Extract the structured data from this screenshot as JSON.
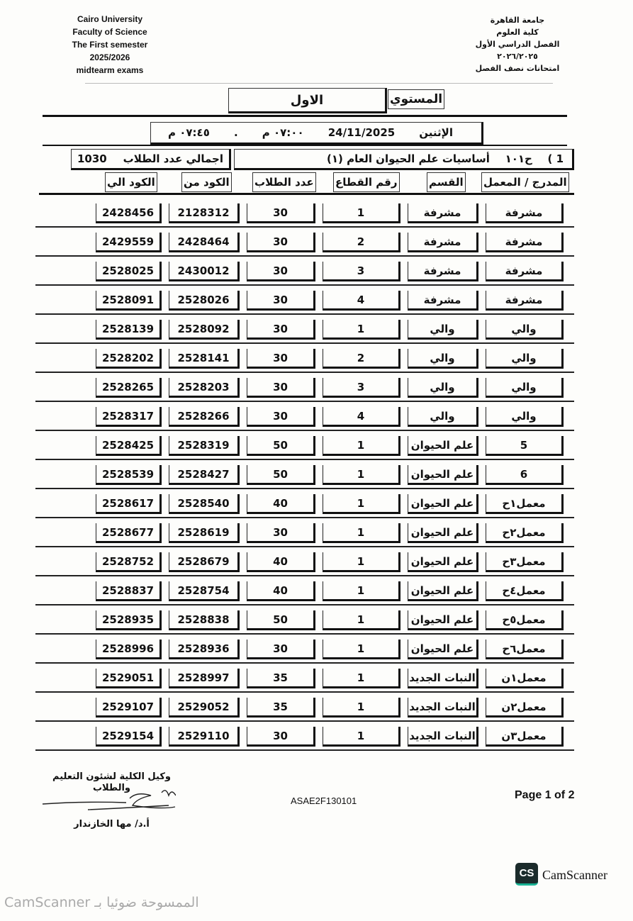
{
  "header_en": {
    "university": "Cairo University",
    "faculty": "Faculty of Science",
    "semester": "The First semester",
    "year": "2025/2026",
    "exam": "midtearm exams"
  },
  "header_ar": {
    "university": "جامعة القاهرة",
    "faculty": "كلية العلوم",
    "semester": "الفصل الدراسي الأول",
    "year": "٢٠٢٦/٢٠٢٥",
    "exam": "امتحانات نصف الفصل"
  },
  "level": {
    "label": "المستوي",
    "value": "الاول"
  },
  "schedule": {
    "day": "الإثنين",
    "date": "24/11/2025",
    "start": "٠٧:٠٠ م",
    "separator": ".",
    "end": "٠٧:٤٥ م"
  },
  "course": {
    "index": "1 )",
    "code": "ح١٠١",
    "name": "أساسيات علم الحيوان العام (١)",
    "total_label": "اجمالي عدد الطلاب",
    "total": "1030"
  },
  "columns": {
    "hall": "المدرج / المعمل",
    "dept": "القسم",
    "section": "رقم القطاع",
    "count": "عدد الطلاب",
    "from": "الكود من",
    "to": "الكود الي"
  },
  "rows": [
    {
      "hall": "مشرفة",
      "dept": "مشرفة",
      "section": "1",
      "count": "30",
      "from": "2128312",
      "to": "2428456"
    },
    {
      "hall": "مشرفة",
      "dept": "مشرفة",
      "section": "2",
      "count": "30",
      "from": "2428464",
      "to": "2429559"
    },
    {
      "hall": "مشرفة",
      "dept": "مشرفة",
      "section": "3",
      "count": "30",
      "from": "2430012",
      "to": "2528025"
    },
    {
      "hall": "مشرفة",
      "dept": "مشرفة",
      "section": "4",
      "count": "30",
      "from": "2528026",
      "to": "2528091"
    },
    {
      "hall": "والي",
      "dept": "والي",
      "section": "1",
      "count": "30",
      "from": "2528092",
      "to": "2528139"
    },
    {
      "hall": "والي",
      "dept": "والي",
      "section": "2",
      "count": "30",
      "from": "2528141",
      "to": "2528202"
    },
    {
      "hall": "والي",
      "dept": "والي",
      "section": "3",
      "count": "30",
      "from": "2528203",
      "to": "2528265"
    },
    {
      "hall": "والي",
      "dept": "والي",
      "section": "4",
      "count": "30",
      "from": "2528266",
      "to": "2528317"
    },
    {
      "hall": "5",
      "dept": "علم الحيوان",
      "section": "1",
      "count": "50",
      "from": "2528319",
      "to": "2528425"
    },
    {
      "hall": "6",
      "dept": "علم الحيوان",
      "section": "1",
      "count": "50",
      "from": "2528427",
      "to": "2528539"
    },
    {
      "hall": "معمل١ح",
      "dept": "علم الحيوان",
      "section": "1",
      "count": "40",
      "from": "2528540",
      "to": "2528617"
    },
    {
      "hall": "معمل٢ح",
      "dept": "علم الحيوان",
      "section": "1",
      "count": "30",
      "from": "2528619",
      "to": "2528677"
    },
    {
      "hall": "معمل٣ح",
      "dept": "علم الحيوان",
      "section": "1",
      "count": "40",
      "from": "2528679",
      "to": "2528752"
    },
    {
      "hall": "معمل٤ح",
      "dept": "علم الحيوان",
      "section": "1",
      "count": "40",
      "from": "2528754",
      "to": "2528837"
    },
    {
      "hall": "معمل٥ح",
      "dept": "علم الحيوان",
      "section": "1",
      "count": "50",
      "from": "2528838",
      "to": "2528935"
    },
    {
      "hall": "معمل٦ح",
      "dept": "علم الحيوان",
      "section": "1",
      "count": "30",
      "from": "2528936",
      "to": "2528996"
    },
    {
      "hall": "معمل١ن",
      "dept": "النبات الجديد",
      "section": "1",
      "count": "35",
      "from": "2528997",
      "to": "2529051"
    },
    {
      "hall": "معمل٢ن",
      "dept": "النبات الجديد",
      "section": "1",
      "count": "35",
      "from": "2529052",
      "to": "2529107"
    },
    {
      "hall": "معمل٣ن",
      "dept": "النبات الجديد",
      "section": "1",
      "count": "30",
      "from": "2529110",
      "to": "2529154"
    }
  ],
  "footer": {
    "signatory_title": "وكيل الكلية لشئون التعليم والطلاب",
    "signatory_name": "أ.د/ مها الخازندار",
    "doc_code": "ASAE2F130101",
    "page": "Page 1 of 2"
  },
  "watermark": {
    "logo": "CS",
    "brand": "CamScanner",
    "scanned_with": "الممسوحة ضوئيا بـ CamScanner"
  }
}
